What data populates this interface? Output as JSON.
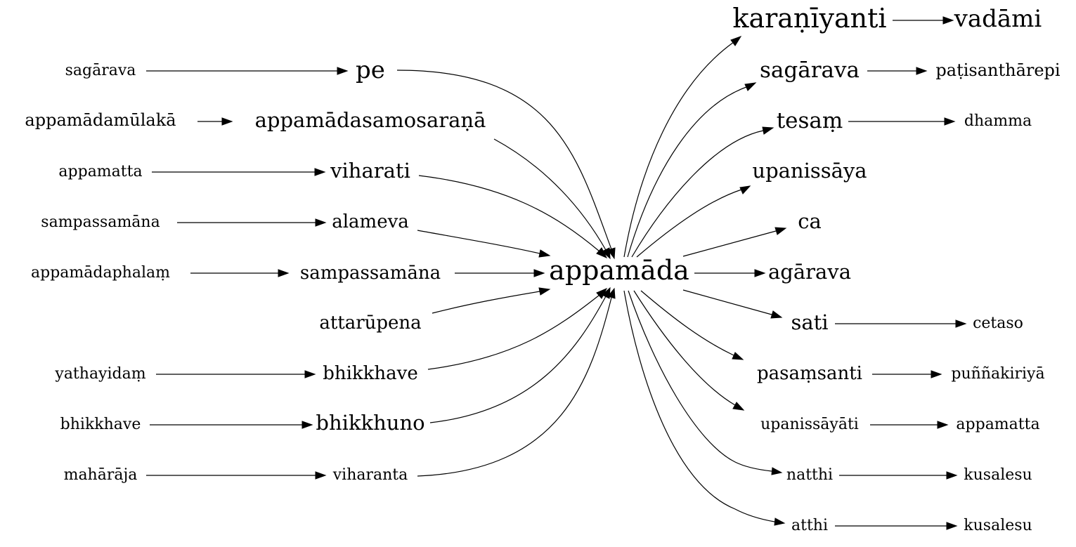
{
  "center": {
    "label": "appamāda"
  },
  "left_chains": [
    {
      "id": "l1",
      "source": "sagārava",
      "target": "pe"
    },
    {
      "id": "l2",
      "source": "appamādamūlakā",
      "target": "appamādasamosaraṇā"
    },
    {
      "id": "l3",
      "source": "appamatta",
      "target": "viharati"
    },
    {
      "id": "l4",
      "source": "sampassamāna",
      "target": "alameva"
    },
    {
      "id": "l5",
      "source": "appamādaphalaṃ",
      "target": "sampassamāna"
    },
    {
      "id": "l6",
      "source": null,
      "target": "attarūpena"
    },
    {
      "id": "l7",
      "source": "yathayidaṃ",
      "target": "bhikkhave"
    },
    {
      "id": "l8",
      "source": "bhikkhave",
      "target": "bhikkhuno"
    },
    {
      "id": "l9",
      "source": "mahārāja",
      "target": "viharanta"
    }
  ],
  "right_chains": [
    {
      "id": "r1",
      "label": "karaṇīyanti",
      "next": "vadāmi"
    },
    {
      "id": "r2",
      "label": "sagārava",
      "next": "paṭisanthārepi"
    },
    {
      "id": "r3",
      "label": "tesaṃ",
      "next": "dhamma"
    },
    {
      "id": "r4",
      "label": "upanissāya",
      "next": null
    },
    {
      "id": "r5",
      "label": "ca",
      "next": null
    },
    {
      "id": "r6",
      "label": "agārava",
      "next": null
    },
    {
      "id": "r7",
      "label": "sati",
      "next": "cetaso"
    },
    {
      "id": "r8",
      "label": "pasaṃsanti",
      "next": "puññakiriyā"
    },
    {
      "id": "r9",
      "label": "upanissāyāti",
      "next": "appamatta"
    },
    {
      "id": "r10",
      "label": "natthi",
      "next": "kusalesu"
    },
    {
      "id": "r11",
      "label": "atthi",
      "next": "kusalesu"
    }
  ]
}
